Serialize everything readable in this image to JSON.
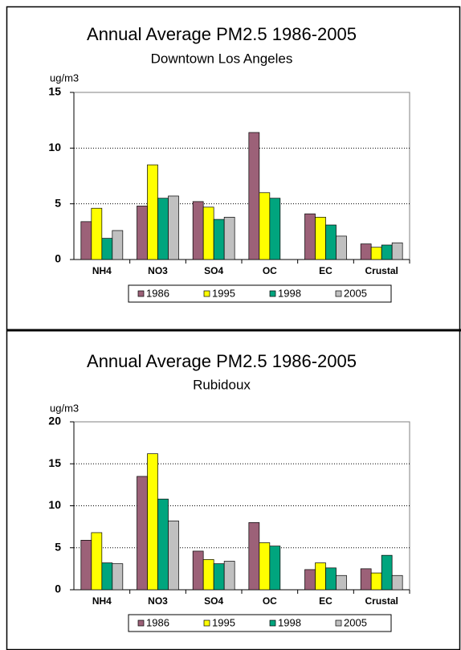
{
  "chart_data": [
    {
      "type": "bar",
      "title": "Annual Average PM2.5 1986-2005",
      "subtitle": "Downtown Los Angeles",
      "y_label": "ug/m3",
      "categories": [
        "NH4",
        "NO3",
        "SO4",
        "OC",
        "EC",
        "Crustal"
      ],
      "series": [
        {
          "name": "1986",
          "color": "#9c6178",
          "values": [
            3.4,
            4.8,
            5.2,
            11.4,
            4.1,
            1.4
          ]
        },
        {
          "name": "1995",
          "color": "#ffff00",
          "values": [
            4.6,
            8.5,
            4.7,
            6.0,
            3.8,
            1.1
          ]
        },
        {
          "name": "1998",
          "color": "#00a57e",
          "values": [
            1.9,
            5.5,
            3.6,
            5.5,
            3.1,
            1.3
          ]
        },
        {
          "name": "2005",
          "color": "#c0c0c0",
          "values": [
            2.6,
            5.7,
            3.8,
            null,
            2.1,
            1.5
          ]
        }
      ],
      "ylim": [
        0,
        15
      ],
      "yticks": [
        0,
        5,
        10,
        15
      ],
      "grid": true,
      "legend": "bottom"
    },
    {
      "type": "bar",
      "title": "Annual Average PM2.5 1986-2005",
      "subtitle": "Rubidoux",
      "y_label": "ug/m3",
      "categories": [
        "NH4",
        "NO3",
        "SO4",
        "OC",
        "EC",
        "Crustal"
      ],
      "series": [
        {
          "name": "1986",
          "color": "#9c6178",
          "values": [
            5.9,
            13.5,
            4.6,
            8.0,
            2.4,
            2.5
          ]
        },
        {
          "name": "1995",
          "color": "#ffff00",
          "values": [
            6.8,
            16.2,
            3.6,
            5.6,
            3.2,
            2.0
          ]
        },
        {
          "name": "1998",
          "color": "#00a57e",
          "values": [
            3.2,
            10.8,
            3.1,
            5.2,
            2.6,
            4.1
          ]
        },
        {
          "name": "2005",
          "color": "#c0c0c0",
          "values": [
            3.1,
            8.2,
            3.4,
            null,
            1.7,
            1.7
          ]
        }
      ],
      "ylim": [
        0,
        20
      ],
      "yticks": [
        0,
        5,
        10,
        15,
        20
      ],
      "grid": true,
      "legend": "bottom"
    }
  ]
}
